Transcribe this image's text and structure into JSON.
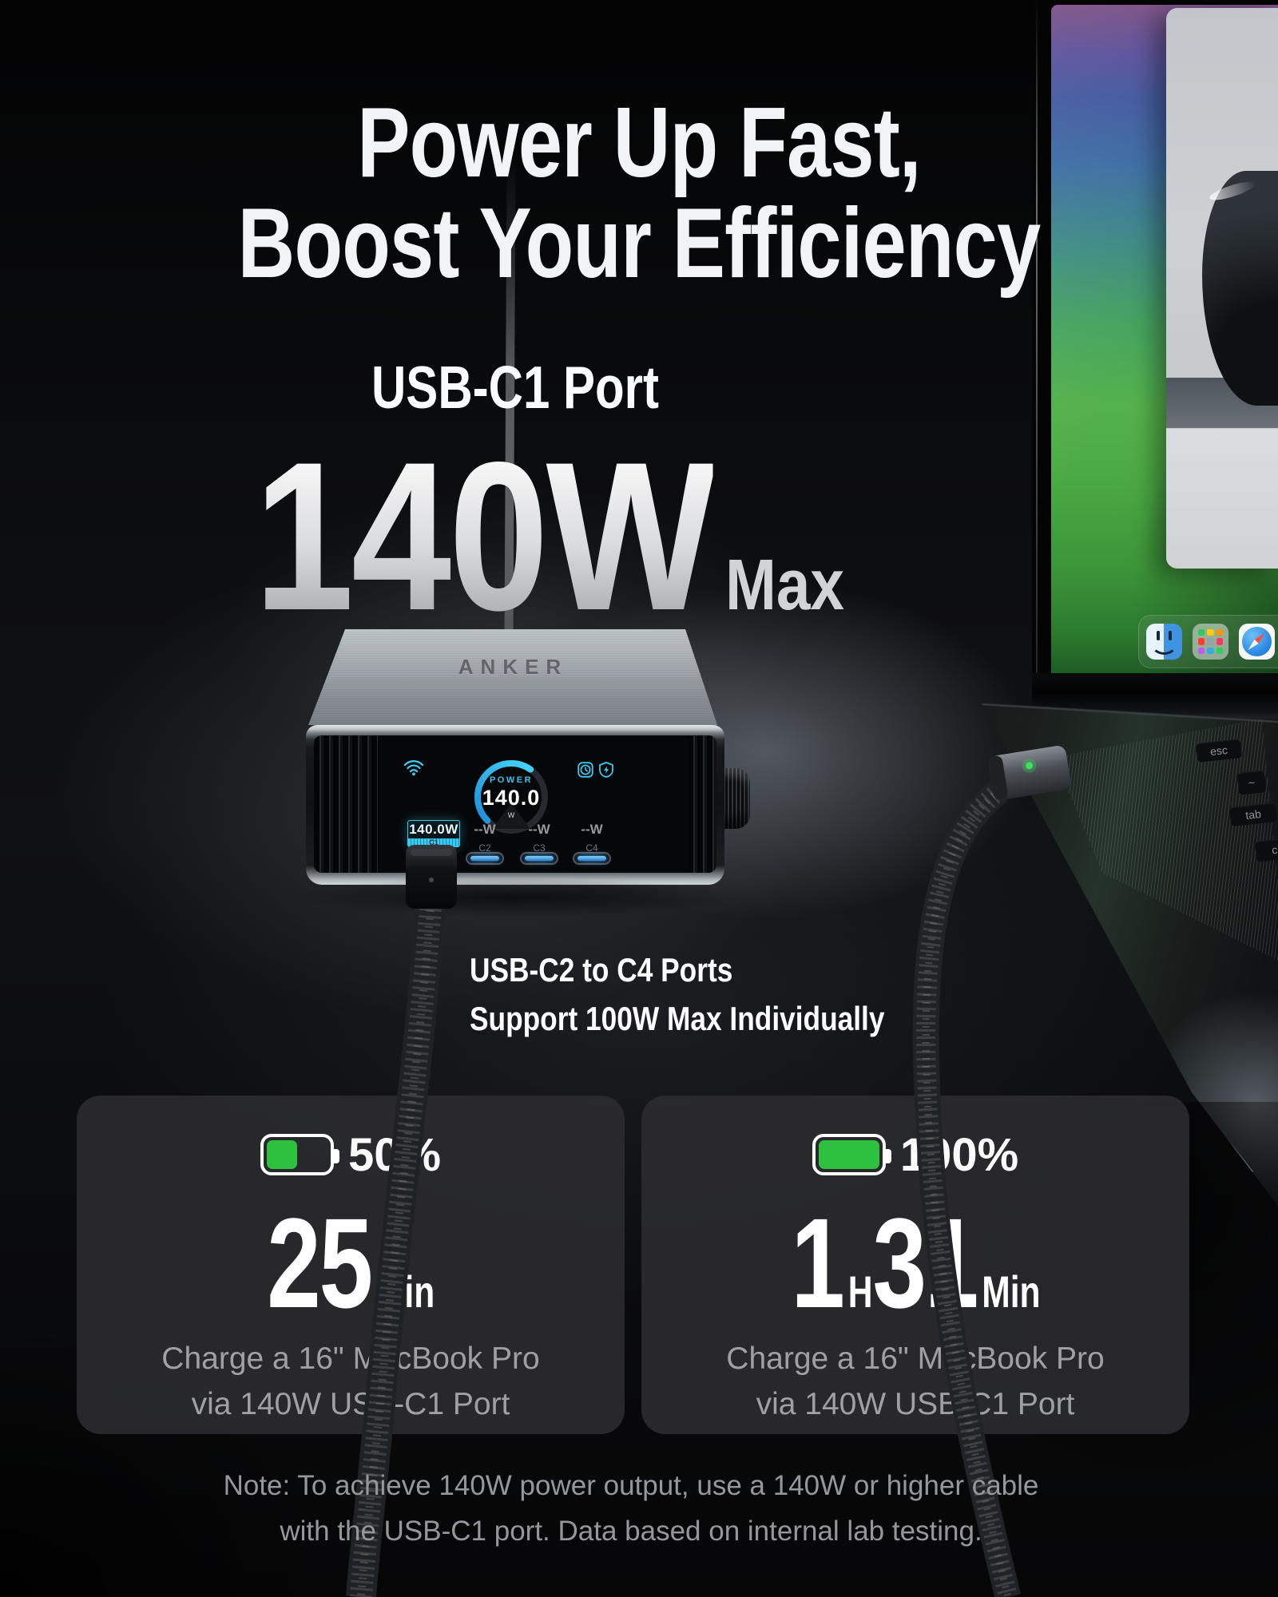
{
  "headline": {
    "line1": "Power Up Fast,",
    "line2": "Boost Your Efficiency"
  },
  "feature": {
    "kicker": "USB-C1 Port",
    "wattage": "140W",
    "wattage_suffix": "Max"
  },
  "subfeature": {
    "line1": "USB-C2 to C4 Ports",
    "line2": "Support 100W Max Individually"
  },
  "device": {
    "brand": "ANKER",
    "display": {
      "power_label": "POWER",
      "power_value": "140.0",
      "power_unit": "W",
      "ports": [
        {
          "id": "C1",
          "watts": "140.0W"
        },
        {
          "id": "C2",
          "watts": "--W"
        },
        {
          "id": "C3",
          "watts": "--W"
        },
        {
          "id": "C4",
          "watts": "--W"
        }
      ]
    }
  },
  "cards": [
    {
      "battery_percent": "50%",
      "battery_level": 0.5,
      "time_value_1": "25",
      "time_unit_1": "Min",
      "time_value_2": "",
      "time_unit_2": "",
      "desc_line1": "Charge a 16\" MacBook Pro",
      "desc_line2": "via 140W USB-C1 Port"
    },
    {
      "battery_percent": "100%",
      "battery_level": 1,
      "time_value_1": "1",
      "time_unit_1": "H",
      "time_value_2": "31",
      "time_unit_2": "Min",
      "desc_line1": "Charge a 16\" MacBook Pro",
      "desc_line2": "via 140W USB-C1 Port"
    }
  ],
  "note": {
    "line1": "Note: To achieve 140W power output, use a 140W or higher cable",
    "line2": "with the USB-C1 port. Data based on internal lab testing."
  },
  "laptop": {
    "keys": [
      "esc",
      "~",
      "tab",
      "caps"
    ]
  },
  "colors": {
    "accent_cyan": "#3BC8F0",
    "battery_green": "#2EC13F",
    "headline_white": "#F2F3F5",
    "note_gray": "#96979B",
    "wallpaper_green": "#54B24C"
  }
}
